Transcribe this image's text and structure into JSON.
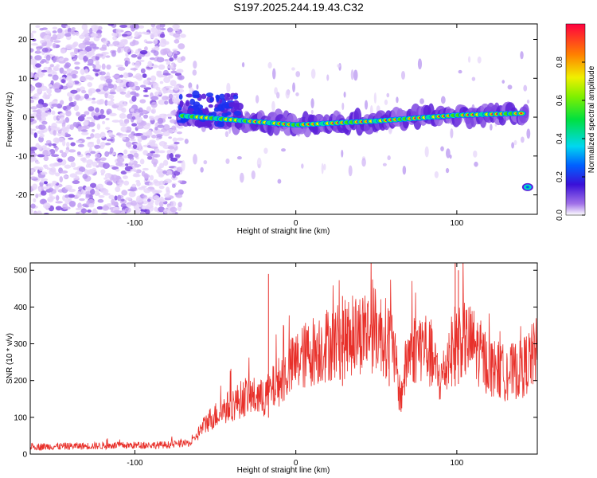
{
  "title": "S197.2025.244.19.43.C32",
  "chart_data": [
    {
      "type": "heatmap",
      "name": "spectrogram",
      "xlabel": "Height of straight line (km)",
      "ylabel": "Frequency (Hz)",
      "xlim": [
        -165,
        150
      ],
      "ylim": [
        -25,
        24
      ],
      "xticks": [
        -100,
        0,
        100
      ],
      "xtick_labels": [
        "-100",
        "0",
        "100"
      ],
      "yticks": [
        -20,
        -10,
        0,
        10,
        20
      ],
      "ytick_labels": [
        "-20",
        "-10",
        "0",
        "10",
        "20"
      ],
      "colorbar": {
        "label": "Normalized spectral amplitude",
        "range": [
          0,
          1
        ],
        "ticks": [
          0.0,
          0.2,
          0.4,
          0.6,
          0.8
        ],
        "tick_labels": [
          "0.0",
          "0.2",
          "0.4",
          "0.6",
          "0.8"
        ]
      },
      "ridge": {
        "description": "main frequency trace",
        "points": [
          [
            -75,
            0.5
          ],
          [
            -30,
            -1
          ],
          [
            0,
            -2
          ],
          [
            50,
            -1
          ],
          [
            100,
            0.5
          ],
          [
            142,
            1
          ]
        ],
        "late_tone": {
          "x": 144,
          "y": -18
        }
      }
    },
    {
      "type": "line",
      "name": "snr",
      "xlabel": "Height of straight line (km)",
      "ylabel": "SNR (10 * v/v)",
      "xlim": [
        -165,
        150
      ],
      "ylim": [
        0,
        520
      ],
      "xticks": [
        -100,
        0,
        100
      ],
      "xtick_labels": [
        "-100",
        "0",
        "100"
      ],
      "yticks": [
        0,
        100,
        200,
        300,
        400,
        500
      ],
      "ytick_labels": [
        "0",
        "100",
        "200",
        "300",
        "400",
        "500"
      ],
      "color": "#e8302a",
      "envelope": [
        {
          "x": -165,
          "y": 20
        },
        {
          "x": -80,
          "y": 25
        },
        {
          "x": -65,
          "y": 30
        },
        {
          "x": -55,
          "y": 90
        },
        {
          "x": -45,
          "y": 120
        },
        {
          "x": -30,
          "y": 160
        },
        {
          "x": -20,
          "y": 150
        },
        {
          "x": -10,
          "y": 200
        },
        {
          "x": 0,
          "y": 250
        },
        {
          "x": 10,
          "y": 280
        },
        {
          "x": 20,
          "y": 300
        },
        {
          "x": 30,
          "y": 310
        },
        {
          "x": 40,
          "y": 330
        },
        {
          "x": 50,
          "y": 340
        },
        {
          "x": 60,
          "y": 300
        },
        {
          "x": 65,
          "y": 150
        },
        {
          "x": 70,
          "y": 280
        },
        {
          "x": 80,
          "y": 300
        },
        {
          "x": 90,
          "y": 200
        },
        {
          "x": 100,
          "y": 320
        },
        {
          "x": 110,
          "y": 300
        },
        {
          "x": 120,
          "y": 240
        },
        {
          "x": 130,
          "y": 220
        },
        {
          "x": 140,
          "y": 230
        },
        {
          "x": 150,
          "y": 280
        }
      ],
      "spikes": [
        {
          "x": -17,
          "y": 490
        },
        {
          "x": 29,
          "y": 430
        },
        {
          "x": 99,
          "y": 520
        },
        {
          "x": 101,
          "y": 500
        },
        {
          "x": 58,
          "y": 390
        }
      ]
    }
  ]
}
